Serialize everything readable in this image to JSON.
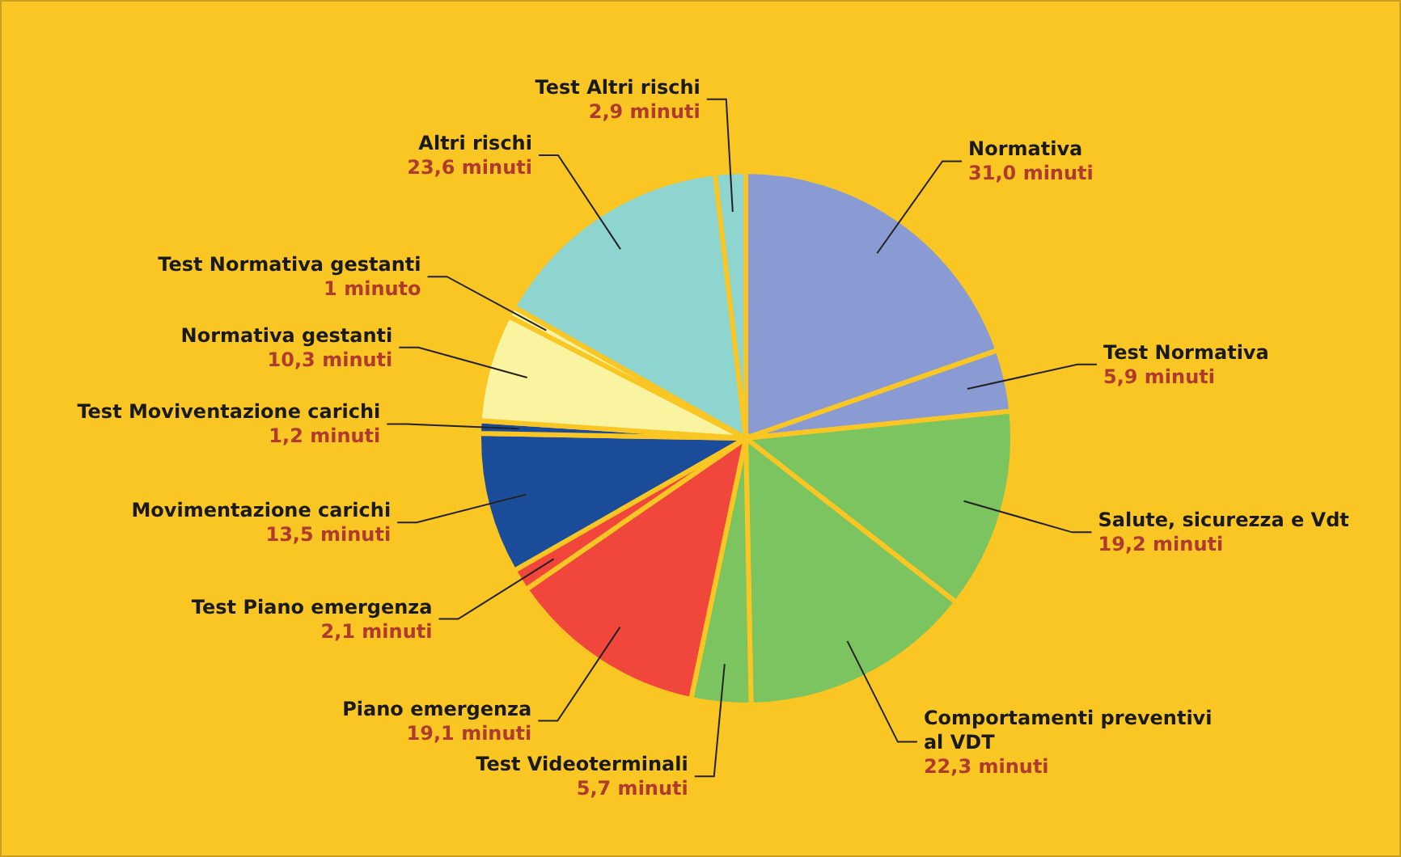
{
  "chart_data": {
    "type": "pie",
    "categories": [
      "Normativa",
      "Test Normativa",
      "Salute, sicurezza e Vdt",
      "Comportamenti preventivi al VDT",
      "Test Videoterminali",
      "Piano emergenza",
      "Test Piano emergenza",
      "Movimentazione carichi",
      "Test Moviventazione carichi",
      "Normativa gestanti",
      "Test Normativa gestanti",
      "Altri rischi",
      "Test Altri rischi"
    ],
    "values": [
      31.0,
      5.9,
      19.2,
      22.3,
      5.7,
      19.1,
      2.1,
      13.5,
      1.2,
      10.3,
      1,
      23.6,
      2.9
    ],
    "value_labels": [
      "31,0 minuti",
      "5,9 minuti",
      "19,2 minuti",
      "22,3 minuti",
      "5,7 minuti",
      "19,1 minuti",
      "2,1 minuti",
      "13,5 minuti",
      "1,2 minuti",
      "10,3 minuti",
      "1 minuto",
      "23,6 minuti",
      "2,9 minuti"
    ],
    "colors": [
      "#8a9bd4",
      "#8a9bd4",
      "#7cc45f",
      "#7cc45f",
      "#7cc45f",
      "#f0463c",
      "#f0463c",
      "#1a4c9a",
      "#1a4c9a",
      "#faf3a0",
      "#faf3a0",
      "#8ed4cf",
      "#8ed4cf"
    ],
    "legend": false
  }
}
